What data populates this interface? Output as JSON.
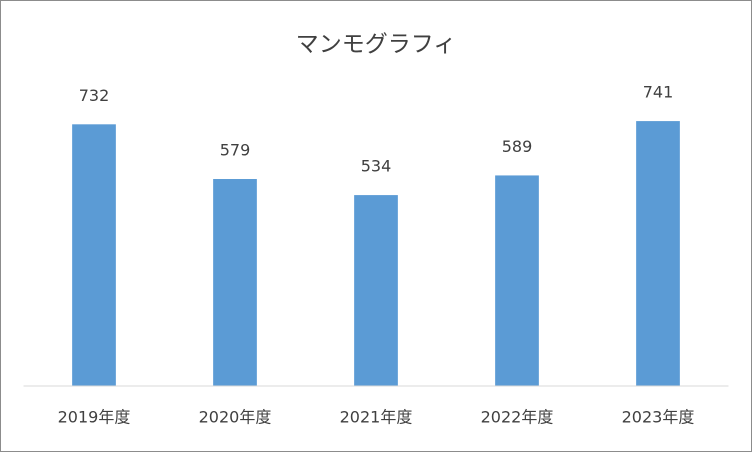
{
  "chart_data": {
    "type": "bar",
    "title": "マンモグラフィ",
    "categories": [
      "2019年度",
      "2020年度",
      "2021年度",
      "2022年度",
      "2023年度"
    ],
    "values": [
      732,
      579,
      534,
      589,
      741
    ],
    "color": "#5b9bd5",
    "ylim": [
      0,
      800
    ]
  }
}
